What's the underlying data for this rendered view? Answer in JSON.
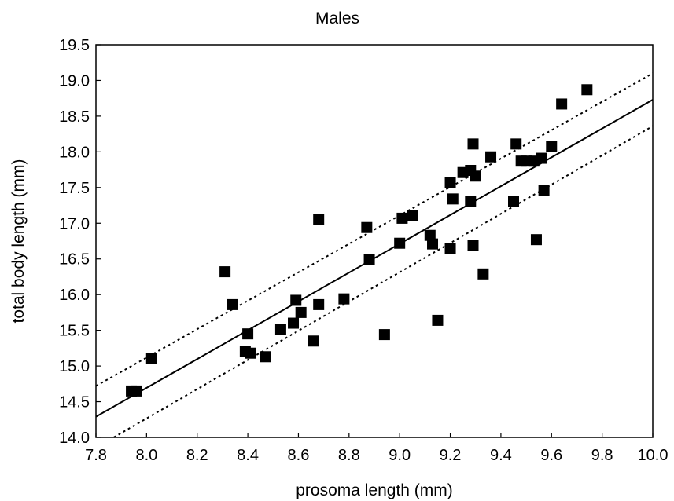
{
  "chart_data": {
    "type": "scatter",
    "title": "Males",
    "xlabel": "prosoma length (mm)",
    "ylabel": "total body length (mm)",
    "xlim": [
      7.8,
      10.0
    ],
    "ylim": [
      14.0,
      19.5
    ],
    "xticks": [
      "7.8",
      "8.0",
      "8.2",
      "8.4",
      "8.6",
      "8.8",
      "9.0",
      "9.2",
      "9.4",
      "9.6",
      "9.8",
      "10.0"
    ],
    "yticks": [
      "14.0",
      "14.5",
      "15.0",
      "15.5",
      "16.0",
      "16.5",
      "17.0",
      "17.5",
      "18.0",
      "18.5",
      "19.0",
      "19.5"
    ],
    "grid": false,
    "series": [
      {
        "marker": "square",
        "color": "#000000",
        "points": [
          [
            7.94,
            14.65
          ],
          [
            7.96,
            14.65
          ],
          [
            8.02,
            15.1
          ],
          [
            8.31,
            16.32
          ],
          [
            8.34,
            15.86
          ],
          [
            8.39,
            15.21
          ],
          [
            8.4,
            15.45
          ],
          [
            8.41,
            15.18
          ],
          [
            8.47,
            15.13
          ],
          [
            8.53,
            15.51
          ],
          [
            8.58,
            15.6
          ],
          [
            8.59,
            15.92
          ],
          [
            8.61,
            15.75
          ],
          [
            8.66,
            15.35
          ],
          [
            8.68,
            15.86
          ],
          [
            8.68,
            17.05
          ],
          [
            8.78,
            15.94
          ],
          [
            8.87,
            16.94
          ],
          [
            8.88,
            16.49
          ],
          [
            8.94,
            15.44
          ],
          [
            9.0,
            16.72
          ],
          [
            9.01,
            17.07
          ],
          [
            9.05,
            17.11
          ],
          [
            9.12,
            16.83
          ],
          [
            9.13,
            16.71
          ],
          [
            9.15,
            15.64
          ],
          [
            9.2,
            16.65
          ],
          [
            9.2,
            17.57
          ],
          [
            9.21,
            17.34
          ],
          [
            9.25,
            17.71
          ],
          [
            9.28,
            17.3
          ],
          [
            9.28,
            17.74
          ],
          [
            9.29,
            18.11
          ],
          [
            9.29,
            16.69
          ],
          [
            9.3,
            17.66
          ],
          [
            9.33,
            16.29
          ],
          [
            9.36,
            17.93
          ],
          [
            9.45,
            17.3
          ],
          [
            9.46,
            18.11
          ],
          [
            9.48,
            17.87
          ],
          [
            9.5,
            17.87
          ],
          [
            9.53,
            17.87
          ],
          [
            9.54,
            16.77
          ],
          [
            9.56,
            17.91
          ],
          [
            9.57,
            17.46
          ],
          [
            9.6,
            18.07
          ],
          [
            9.64,
            18.67
          ],
          [
            9.74,
            18.87
          ]
        ]
      }
    ],
    "fit_line": {
      "style": "solid",
      "color": "#000000",
      "x": [
        7.8,
        10.0
      ],
      "y": [
        14.29,
        18.73
      ]
    },
    "confidence_bands": [
      {
        "style": "dotted",
        "color": "#000000",
        "x": [
          7.8,
          10.0
        ],
        "y": [
          14.72,
          19.1
        ]
      },
      {
        "style": "dotted",
        "color": "#000000",
        "x": [
          7.87,
          10.0
        ],
        "y": [
          14.0,
          18.36
        ]
      }
    ]
  }
}
